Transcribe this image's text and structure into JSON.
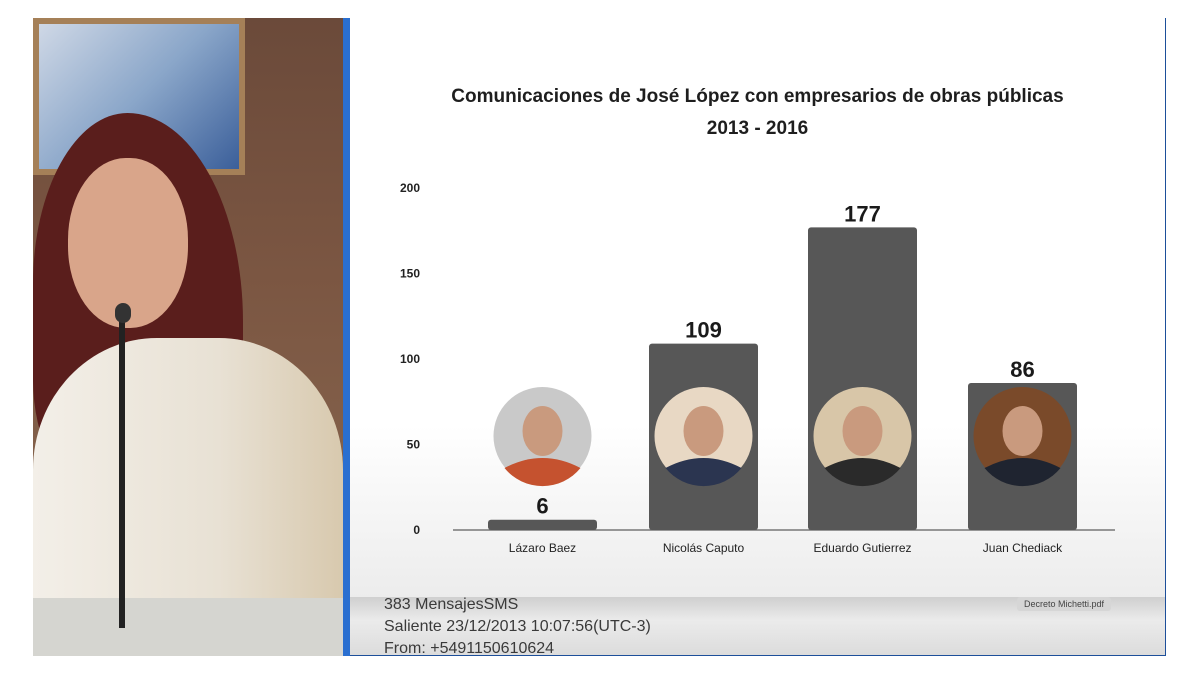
{
  "slide": {
    "footer_lines": [
      "383 MensajesSMS",
      "Saliente 23/12/2013 10:07:56(UTC-3)",
      "From: +5491150610624"
    ],
    "pdf_tab": "Decreto Michetti.pdf"
  },
  "chart_data": {
    "type": "bar",
    "title": "Comunicaciones de José López con empresarios de obras públicas",
    "subtitle": "2013 - 2016",
    "categories": [
      "Lázaro Baez",
      "Nicolás Caputo",
      "Eduardo Gutierrez",
      "Juan Chediack"
    ],
    "values": [
      6,
      109,
      177,
      86
    ],
    "data_labels": [
      "6",
      "109",
      "177",
      "86"
    ],
    "yticks": [
      "0",
      "50",
      "100",
      "150",
      "200"
    ],
    "ylim": [
      0,
      200
    ],
    "xlabel": "",
    "ylabel": "",
    "grid": false,
    "bar_color": "#575757",
    "portraits": true
  }
}
